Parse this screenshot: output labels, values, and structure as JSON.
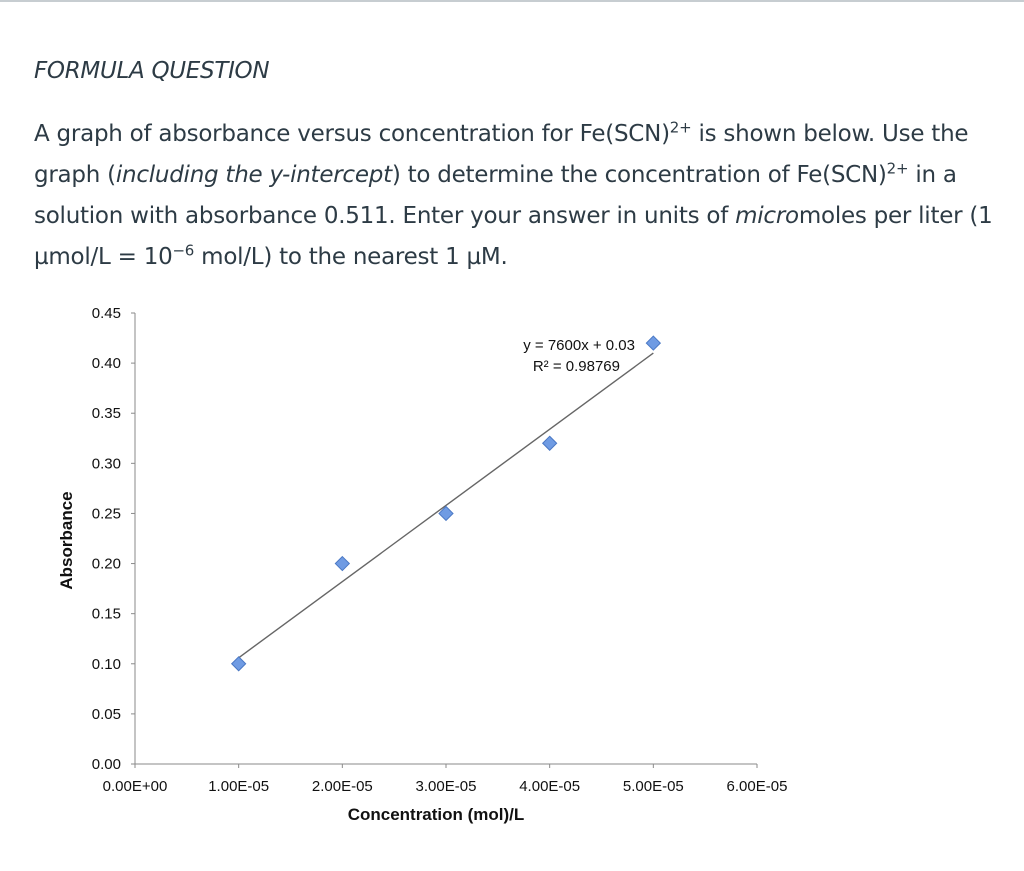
{
  "question": {
    "type_label": "FORMULA QUESTION",
    "text_parts": {
      "p1": "A graph of absorbance versus concentration for Fe(SCN)",
      "sup1": "2+",
      "p2": " is shown below. Use the graph (",
      "italic1": "including the y-intercept",
      "p3": ") to determine the concentration of Fe(SCN)",
      "sup2": "2+",
      "p4": " in a solution with absorbance 0.511. Enter your answer in units of ",
      "italic2": "micro",
      "p5": "moles per liter (1 µmol/L = 10",
      "sup3": "−6",
      "p6": " mol/L) to the nearest 1 µM."
    }
  },
  "chart_data": {
    "type": "scatter",
    "xlabel": "Concentration (mol)/L",
    "ylabel": "Absorbance",
    "xlim": [
      0,
      6e-05
    ],
    "ylim": [
      0,
      0.45
    ],
    "x_ticks": [
      0,
      1e-05,
      2e-05,
      3e-05,
      4e-05,
      5e-05,
      6e-05
    ],
    "x_tick_labels": [
      "0.00E+00",
      "1.00E-05",
      "2.00E-05",
      "3.00E-05",
      "4.00E-05",
      "5.00E-05",
      "6.00E-05"
    ],
    "y_ticks": [
      0,
      0.05,
      0.1,
      0.15,
      0.2,
      0.25,
      0.3,
      0.35,
      0.4,
      0.45
    ],
    "y_tick_labels": [
      "0.00",
      "0.05",
      "0.10",
      "0.15",
      "0.20",
      "0.25",
      "0.30",
      "0.35",
      "0.40",
      "0.45"
    ],
    "series": [
      {
        "x": [
          1e-05,
          2e-05,
          3e-05,
          4e-05,
          5e-05
        ],
        "y": [
          0.1,
          0.2,
          0.25,
          0.32,
          0.42
        ]
      }
    ],
    "trendline": {
      "slope": 7600,
      "intercept": 0.03,
      "x_range": [
        1e-05,
        5e-05
      ],
      "equation_label": "y = 7600x + 0.03",
      "r2_label": "R² = 0.98769"
    },
    "marker_color": "#6f9be3",
    "marker_stroke": "#4a78c4",
    "line_color": "#666666",
    "grid": false,
    "legend": "none"
  }
}
